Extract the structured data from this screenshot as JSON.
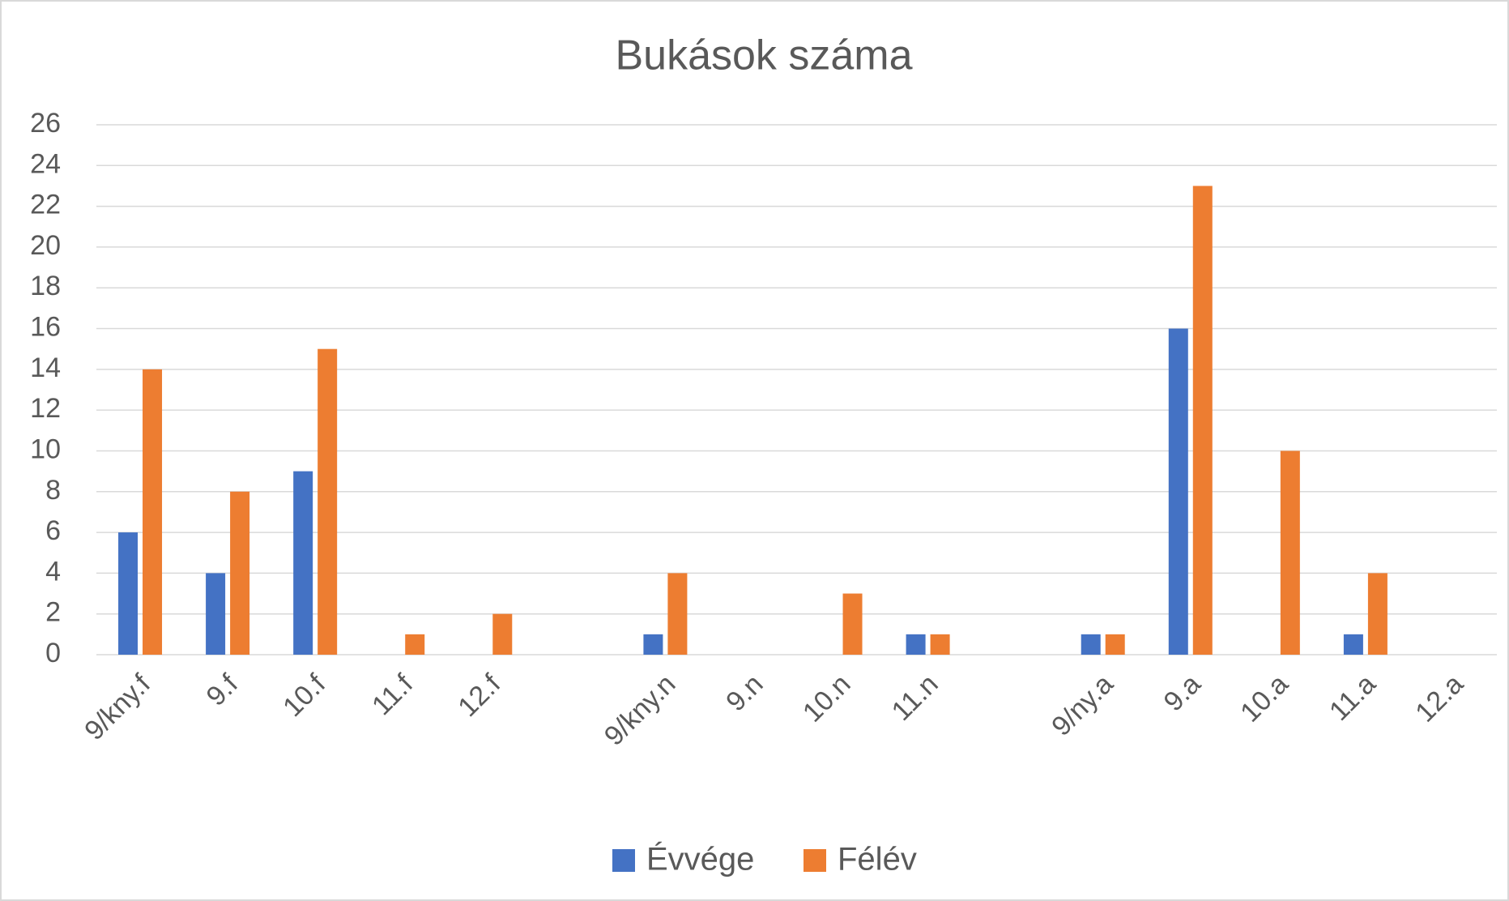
{
  "chart_data": {
    "type": "bar",
    "title": "Bukások száma",
    "categories": [
      "9/kny.f",
      "9.f",
      "10.f",
      "11.f",
      "12.f",
      null,
      "9/kny.n",
      "9.n",
      "10.n",
      "11.n",
      null,
      "9/ny.a",
      "9.a",
      "10.a",
      "11.a",
      "12.a"
    ],
    "series": [
      {
        "name": "Évvége",
        "color": "#4472c4",
        "values": [
          6,
          4,
          9,
          0,
          0,
          null,
          1,
          0,
          0,
          1,
          null,
          1,
          16,
          0,
          1,
          0
        ]
      },
      {
        "name": "Félév",
        "color": "#ed7d31",
        "values": [
          14,
          8,
          15,
          1,
          2,
          null,
          4,
          0,
          3,
          1,
          null,
          1,
          23,
          10,
          4,
          0
        ]
      }
    ],
    "ylim": [
      0,
      26
    ],
    "yticks": [
      0,
      2,
      4,
      6,
      8,
      10,
      12,
      14,
      16,
      18,
      20,
      22,
      24,
      26
    ],
    "grid": true,
    "legend": "bottom"
  }
}
